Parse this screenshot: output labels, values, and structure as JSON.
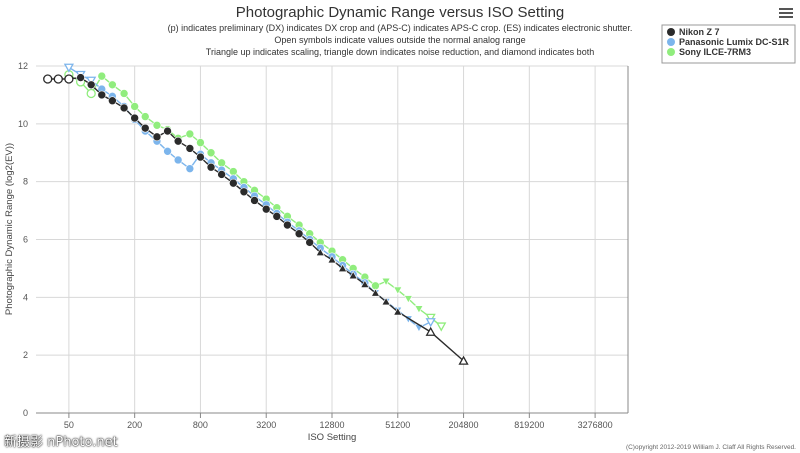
{
  "menu": {
    "icon": "hamburger-menu-icon"
  },
  "watermark": "新摄影 nPhoto.net",
  "chart_data": {
    "type": "line",
    "title": "Photographic Dynamic Range versus ISO Setting",
    "subtitle_lines": [
      "(p) indicates preliminary (DX) indicates DX crop and (APS-C) indicates APS-C crop. (ES) indicates electronic shutter.",
      "Open symbols indicate values outside the normal analog range",
      "Triangle up indicates scaling, triangle down indicates noise reduction, and diamond indicates both"
    ],
    "xlabel": "ISO Setting",
    "ylabel": "Photographic Dynamic Range (log2(EV))",
    "x_scale": "log2",
    "xlim": [
      25,
      6553600
    ],
    "ylim": [
      0,
      12
    ],
    "x_ticks": [
      "50",
      "200",
      "800",
      "3200",
      "12800",
      "51200",
      "204800",
      "819200",
      "3276800"
    ],
    "y_ticks": [
      "0",
      "2",
      "4",
      "6",
      "8",
      "10",
      "12"
    ],
    "copyright": "(C)opyright 2012-2019 William J. Claff All Rights Reserved.",
    "legend_position": "top-right",
    "series": [
      {
        "name": "Nikon Z 7",
        "color": "#2b2b2b",
        "points": [
          {
            "x": 32,
            "y": 11.55,
            "m": "open-circle"
          },
          {
            "x": 40,
            "y": 11.55,
            "m": "open-circle"
          },
          {
            "x": 50,
            "y": 11.55,
            "m": "open-circle"
          },
          {
            "x": 64,
            "y": 11.6,
            "m": "circle"
          },
          {
            "x": 80,
            "y": 11.35,
            "m": "circle"
          },
          {
            "x": 100,
            "y": 11.0,
            "m": "circle"
          },
          {
            "x": 125,
            "y": 10.8,
            "m": "circle"
          },
          {
            "x": 160,
            "y": 10.55,
            "m": "circle"
          },
          {
            "x": 200,
            "y": 10.2,
            "m": "circle"
          },
          {
            "x": 250,
            "y": 9.85,
            "m": "circle"
          },
          {
            "x": 320,
            "y": 9.55,
            "m": "circle"
          },
          {
            "x": 400,
            "y": 9.75,
            "m": "circle"
          },
          {
            "x": 500,
            "y": 9.4,
            "m": "circle"
          },
          {
            "x": 640,
            "y": 9.15,
            "m": "circle"
          },
          {
            "x": 800,
            "y": 8.85,
            "m": "circle"
          },
          {
            "x": 1000,
            "y": 8.5,
            "m": "circle"
          },
          {
            "x": 1250,
            "y": 8.25,
            "m": "circle"
          },
          {
            "x": 1600,
            "y": 7.95,
            "m": "circle"
          },
          {
            "x": 2000,
            "y": 7.65,
            "m": "circle"
          },
          {
            "x": 2500,
            "y": 7.35,
            "m": "circle"
          },
          {
            "x": 3200,
            "y": 7.05,
            "m": "circle"
          },
          {
            "x": 4000,
            "y": 6.8,
            "m": "circle"
          },
          {
            "x": 5000,
            "y": 6.5,
            "m": "circle"
          },
          {
            "x": 6400,
            "y": 6.2,
            "m": "circle"
          },
          {
            "x": 8000,
            "y": 5.9,
            "m": "circle"
          },
          {
            "x": 10000,
            "y": 5.55,
            "m": "triangle-up"
          },
          {
            "x": 12800,
            "y": 5.3,
            "m": "triangle-up"
          },
          {
            "x": 16000,
            "y": 5.0,
            "m": "triangle-up"
          },
          {
            "x": 20000,
            "y": 4.75,
            "m": "triangle-up"
          },
          {
            "x": 25600,
            "y": 4.45,
            "m": "triangle-up"
          },
          {
            "x": 32000,
            "y": 4.15,
            "m": "triangle-up"
          },
          {
            "x": 40000,
            "y": 3.85,
            "m": "triangle-up"
          },
          {
            "x": 51200,
            "y": 3.5,
            "m": "triangle-up"
          },
          {
            "x": 102400,
            "y": 2.8,
            "m": "open-triangle-up"
          },
          {
            "x": 204800,
            "y": 1.8,
            "m": "open-triangle-up"
          }
        ]
      },
      {
        "name": "Panasonic Lumix DC-S1R",
        "color": "#7cb5ec",
        "points": [
          {
            "x": 50,
            "y": 11.95,
            "m": "open-triangle-down"
          },
          {
            "x": 64,
            "y": 11.7,
            "m": "open-triangle-down"
          },
          {
            "x": 80,
            "y": 11.5,
            "m": "open-triangle-down"
          },
          {
            "x": 100,
            "y": 11.2,
            "m": "circle"
          },
          {
            "x": 125,
            "y": 10.95,
            "m": "circle"
          },
          {
            "x": 160,
            "y": 10.6,
            "m": "circle"
          },
          {
            "x": 200,
            "y": 10.15,
            "m": "circle"
          },
          {
            "x": 250,
            "y": 9.75,
            "m": "circle"
          },
          {
            "x": 320,
            "y": 9.4,
            "m": "circle"
          },
          {
            "x": 400,
            "y": 9.05,
            "m": "circle"
          },
          {
            "x": 500,
            "y": 8.75,
            "m": "circle"
          },
          {
            "x": 640,
            "y": 8.45,
            "m": "circle"
          },
          {
            "x": 800,
            "y": 8.95,
            "m": "circle"
          },
          {
            "x": 1000,
            "y": 8.65,
            "m": "circle"
          },
          {
            "x": 1250,
            "y": 8.4,
            "m": "circle"
          },
          {
            "x": 1600,
            "y": 8.1,
            "m": "circle"
          },
          {
            "x": 2000,
            "y": 7.8,
            "m": "circle"
          },
          {
            "x": 2500,
            "y": 7.5,
            "m": "circle"
          },
          {
            "x": 3200,
            "y": 7.2,
            "m": "circle"
          },
          {
            "x": 4000,
            "y": 6.9,
            "m": "circle"
          },
          {
            "x": 5000,
            "y": 6.6,
            "m": "circle"
          },
          {
            "x": 6400,
            "y": 6.3,
            "m": "circle"
          },
          {
            "x": 8000,
            "y": 6.0,
            "m": "circle"
          },
          {
            "x": 10000,
            "y": 5.7,
            "m": "circle"
          },
          {
            "x": 12800,
            "y": 5.4,
            "m": "circle"
          },
          {
            "x": 16000,
            "y": 5.1,
            "m": "circle"
          },
          {
            "x": 20000,
            "y": 4.8,
            "m": "circle"
          },
          {
            "x": 25600,
            "y": 4.5,
            "m": "circle"
          },
          {
            "x": 32000,
            "y": 4.15,
            "m": "triangle-down"
          },
          {
            "x": 40000,
            "y": 3.85,
            "m": "triangle-down"
          },
          {
            "x": 51200,
            "y": 3.55,
            "m": "triangle-down"
          },
          {
            "x": 64000,
            "y": 3.25,
            "m": "triangle-down"
          },
          {
            "x": 80000,
            "y": 2.95,
            "m": "triangle-down"
          },
          {
            "x": 102400,
            "y": 3.15,
            "m": "open-triangle-down"
          }
        ]
      },
      {
        "name": "Sony ILCE-7RM3",
        "color": "#90ed7d",
        "points": [
          {
            "x": 50,
            "y": 11.7,
            "m": "open-circle"
          },
          {
            "x": 64,
            "y": 11.45,
            "m": "open-circle"
          },
          {
            "x": 80,
            "y": 11.05,
            "m": "open-circle"
          },
          {
            "x": 100,
            "y": 11.65,
            "m": "circle"
          },
          {
            "x": 125,
            "y": 11.35,
            "m": "circle"
          },
          {
            "x": 160,
            "y": 11.05,
            "m": "circle"
          },
          {
            "x": 200,
            "y": 10.6,
            "m": "circle"
          },
          {
            "x": 250,
            "y": 10.25,
            "m": "circle"
          },
          {
            "x": 320,
            "y": 9.95,
            "m": "circle"
          },
          {
            "x": 400,
            "y": 9.8,
            "m": "circle"
          },
          {
            "x": 500,
            "y": 9.5,
            "m": "circle"
          },
          {
            "x": 640,
            "y": 9.65,
            "m": "circle"
          },
          {
            "x": 800,
            "y": 9.35,
            "m": "circle"
          },
          {
            "x": 1000,
            "y": 9.0,
            "m": "circle"
          },
          {
            "x": 1250,
            "y": 8.65,
            "m": "circle"
          },
          {
            "x": 1600,
            "y": 8.35,
            "m": "circle"
          },
          {
            "x": 2000,
            "y": 8.0,
            "m": "circle"
          },
          {
            "x": 2500,
            "y": 7.7,
            "m": "circle"
          },
          {
            "x": 3200,
            "y": 7.4,
            "m": "circle"
          },
          {
            "x": 4000,
            "y": 7.1,
            "m": "circle"
          },
          {
            "x": 5000,
            "y": 6.8,
            "m": "circle"
          },
          {
            "x": 6400,
            "y": 6.5,
            "m": "circle"
          },
          {
            "x": 8000,
            "y": 6.2,
            "m": "circle"
          },
          {
            "x": 10000,
            "y": 5.9,
            "m": "circle"
          },
          {
            "x": 12800,
            "y": 5.6,
            "m": "circle"
          },
          {
            "x": 16000,
            "y": 5.3,
            "m": "circle"
          },
          {
            "x": 20000,
            "y": 5.0,
            "m": "circle"
          },
          {
            "x": 25600,
            "y": 4.7,
            "m": "circle"
          },
          {
            "x": 32000,
            "y": 4.4,
            "m": "circle"
          },
          {
            "x": 40000,
            "y": 4.55,
            "m": "triangle-down"
          },
          {
            "x": 51200,
            "y": 4.25,
            "m": "triangle-down"
          },
          {
            "x": 64000,
            "y": 3.95,
            "m": "triangle-down"
          },
          {
            "x": 80000,
            "y": 3.6,
            "m": "triangle-down"
          },
          {
            "x": 102400,
            "y": 3.3,
            "m": "open-triangle-down"
          },
          {
            "x": 128000,
            "y": 3.0,
            "m": "open-triangle-down"
          }
        ]
      }
    ]
  }
}
